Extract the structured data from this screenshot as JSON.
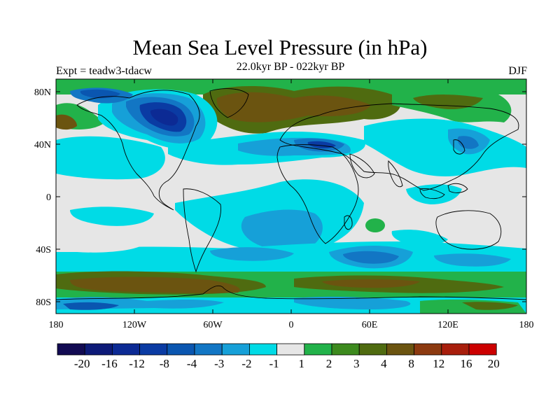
{
  "title": "Mean Sea Level Pressure (in hPa)",
  "subtitle": "22.0kyr BP - 022kyr BP",
  "left_label": "Expt = teadw3-tdacw",
  "right_label": "DJF",
  "lat_ticks": [
    "80N",
    "40N",
    "0",
    "40S",
    "80S"
  ],
  "lon_ticks": [
    "180",
    "120W",
    "60W",
    "0",
    "60E",
    "120E",
    "180"
  ],
  "colorbar": {
    "labels": [
      "-20",
      "-16",
      "-12",
      "-8",
      "-4",
      "-3",
      "-2",
      "-1",
      "1",
      "2",
      "3",
      "4",
      "8",
      "12",
      "16",
      "20"
    ],
    "colors": [
      "#120a52",
      "#0d1a78",
      "#0c2a94",
      "#0a3ba3",
      "#0a56b0",
      "#1276c4",
      "#16a0d8",
      "#00dbe6",
      "#e6e6e6",
      "#22b24a",
      "#3d8a1e",
      "#4f6b10",
      "#6b5410",
      "#8c3a10",
      "#a81e0c",
      "#cc0000"
    ]
  },
  "colors": {
    "land_outline": "#000000",
    "background": "#ffffff"
  }
}
